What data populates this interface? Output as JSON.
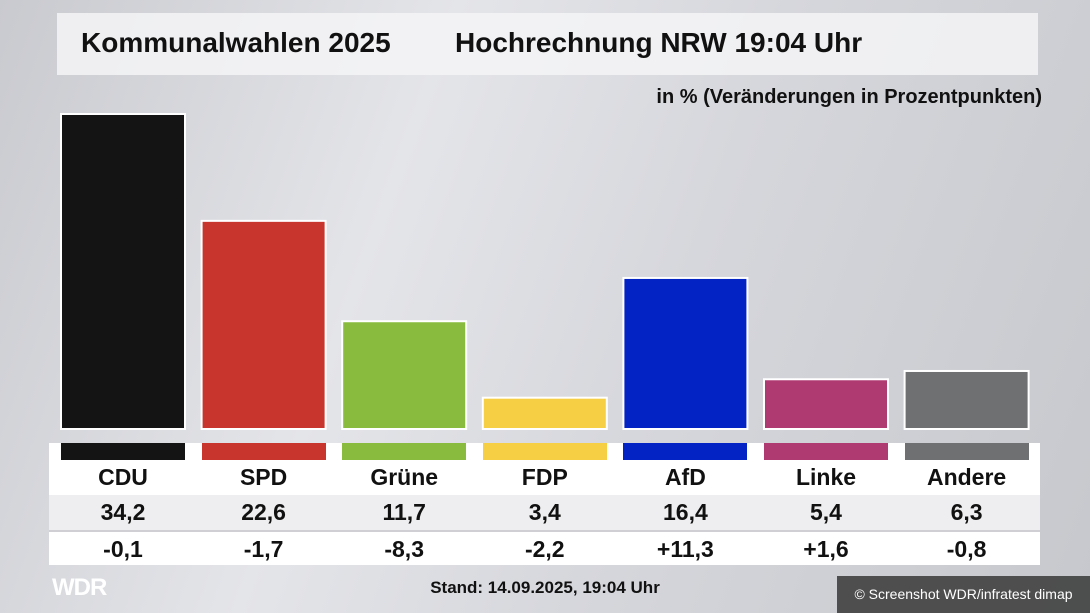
{
  "header": {
    "title": "Kommunalwahlen 2025",
    "subtitle": "Hochrechnung NRW 19:04 Uhr",
    "unit_note": "in % (Veränderungen in Prozentpunkten)"
  },
  "chart_data": {
    "type": "bar",
    "title": "Hochrechnung NRW 19:04 Uhr",
    "categories": [
      "CDU",
      "SPD",
      "Grüne",
      "FDP",
      "AfD",
      "Linke",
      "Andere"
    ],
    "values": [
      34.2,
      22.6,
      11.7,
      3.4,
      16.4,
      5.4,
      6.3
    ],
    "value_labels": [
      "34,2",
      "22,6",
      "11,7",
      "3,4",
      "16,4",
      "5,4",
      "6,3"
    ],
    "changes": [
      "-0,1",
      "-1,7",
      "-8,3",
      "-2,2",
      "+11,3",
      "+1,6",
      "-0,8"
    ],
    "colors": [
      "#141414",
      "#c8352c",
      "#88bb3e",
      "#f6cf45",
      "#0423c4",
      "#af3a72",
      "#6f7072"
    ],
    "ylabel": "in %",
    "ylim": [
      0,
      34.2
    ]
  },
  "footer": {
    "stand": "Stand: 14.09.2025, 19:04 Uhr",
    "logo": "WDR",
    "copyright": "© Screenshot WDR/infratest dimap"
  }
}
